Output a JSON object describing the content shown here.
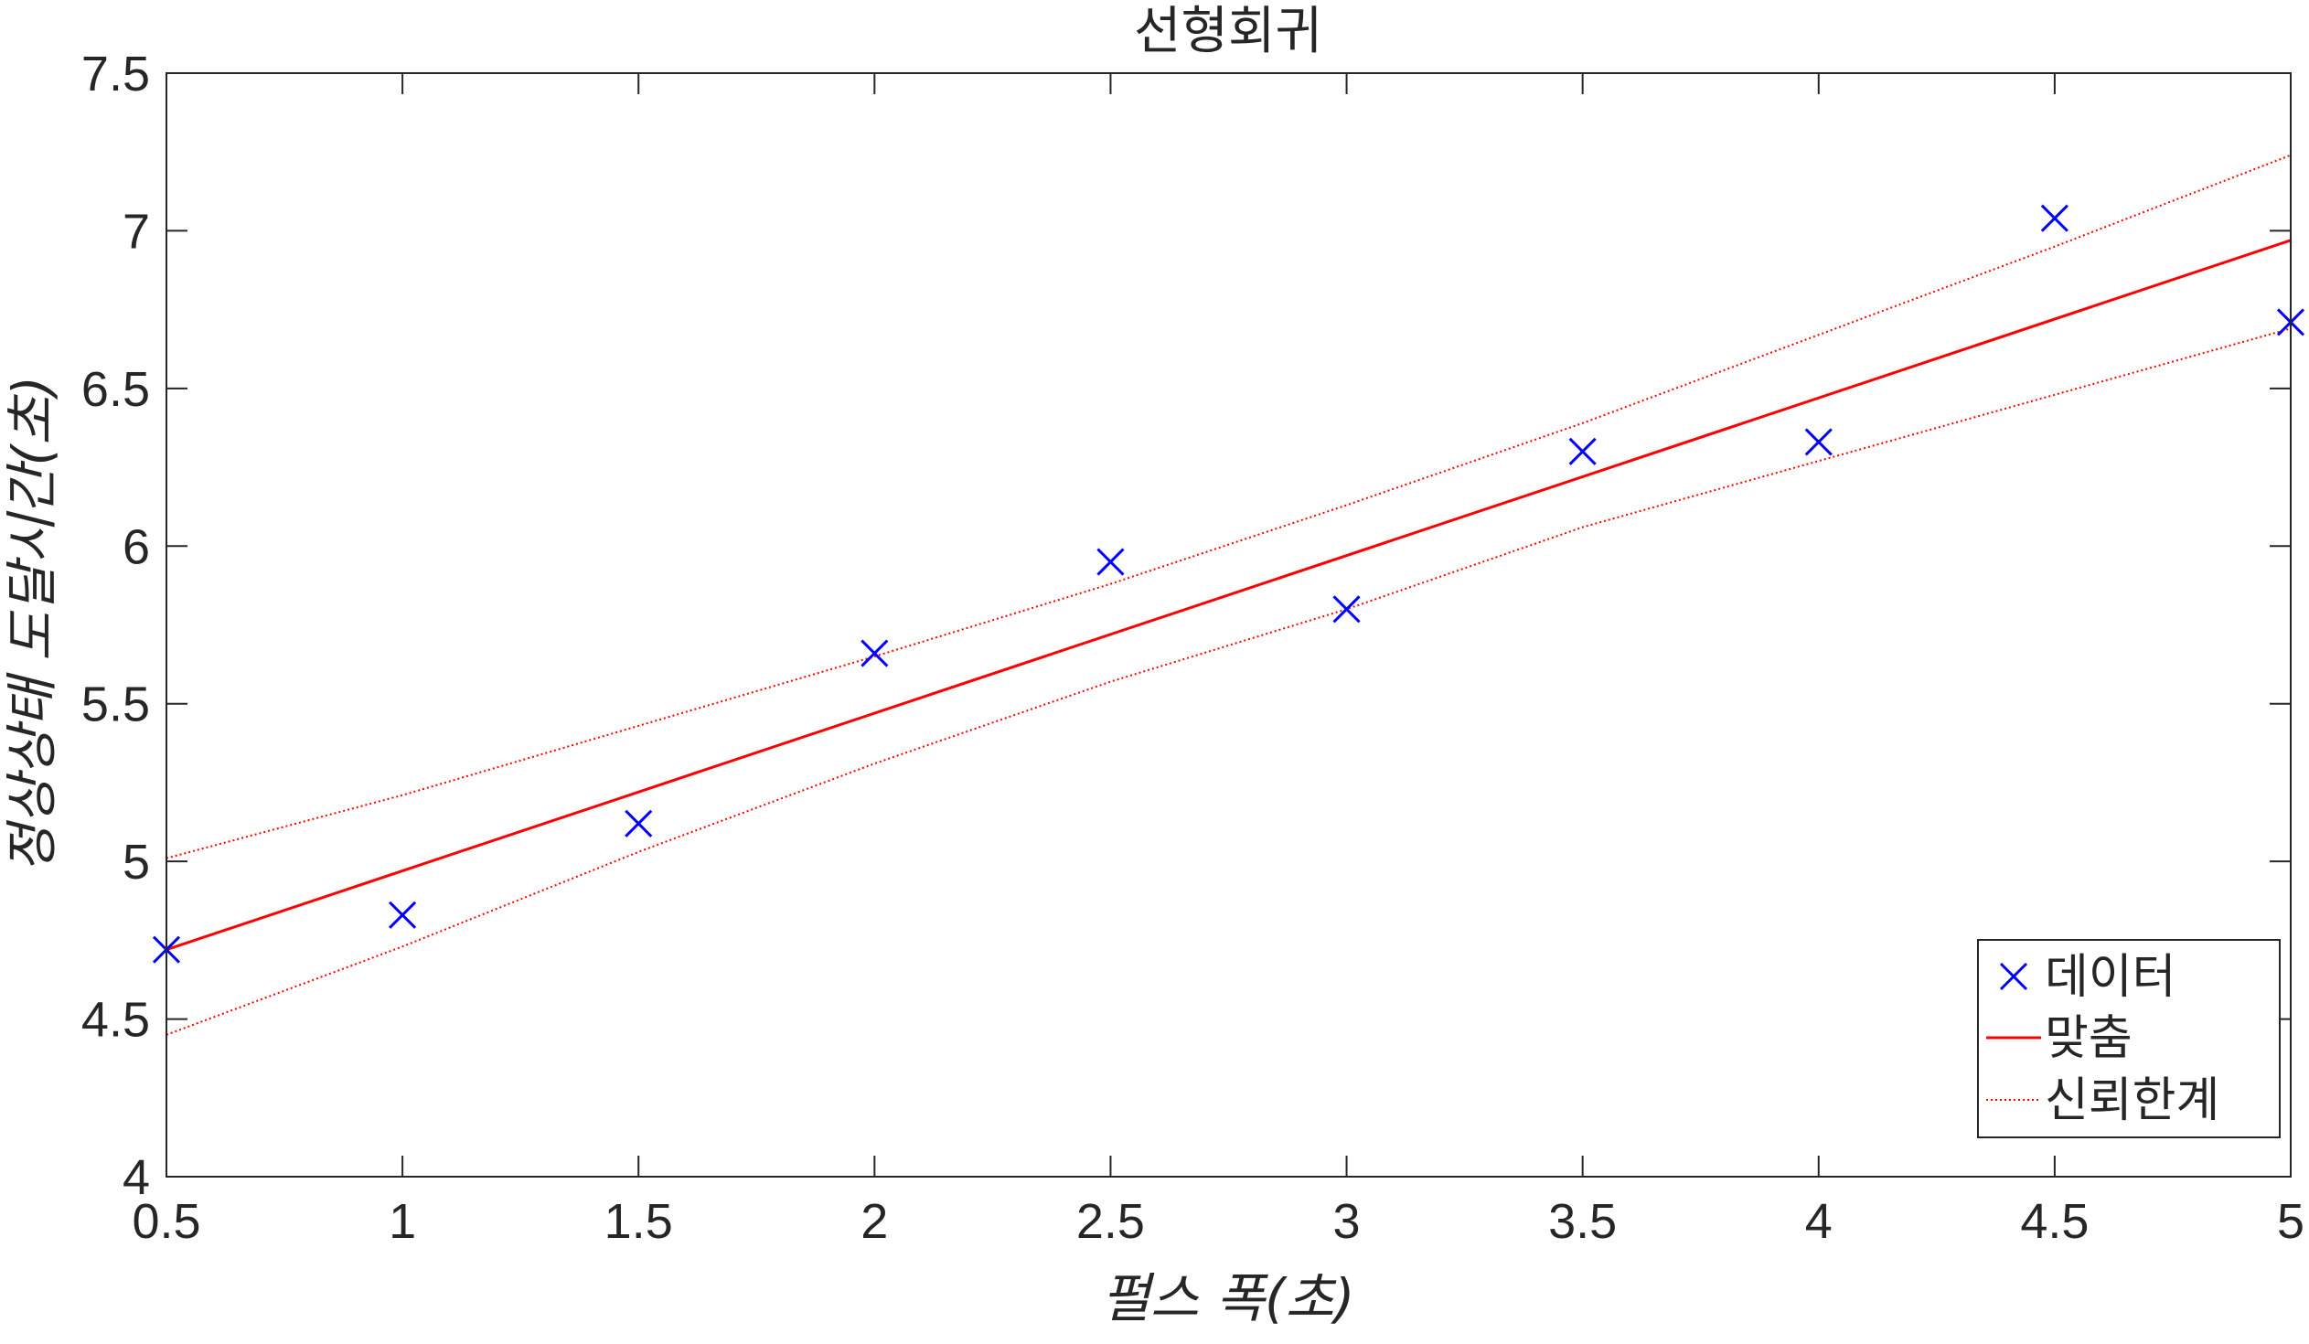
{
  "chart_data": {
    "type": "scatter",
    "title": "선형회귀",
    "xlabel": "펄스 폭(초)",
    "ylabel": "정상상태 도달시간(초)",
    "xlim": [
      0.5,
      5
    ],
    "ylim": [
      4,
      7.5
    ],
    "xticks": [
      "0.5",
      "1",
      "1.5",
      "2",
      "2.5",
      "3",
      "3.5",
      "4",
      "4.5",
      "5"
    ],
    "yticks": [
      "4",
      "4.5",
      "5",
      "5.5",
      "6",
      "6.5",
      "7",
      "7.5"
    ],
    "grid": false,
    "legend_position": "bottom-right",
    "series": [
      {
        "name": "데이터",
        "kind": "scatter",
        "marker": "x",
        "color": "#0000ff",
        "x": [
          0.5,
          1,
          1.5,
          2,
          2.5,
          3,
          3.5,
          4,
          4.5,
          5
        ],
        "y": [
          4.72,
          4.83,
          5.12,
          5.66,
          5.95,
          5.8,
          6.3,
          6.33,
          7.04,
          6.71
        ]
      },
      {
        "name": "맞춤",
        "kind": "line",
        "style": "solid",
        "color": "#ff0000",
        "x": [
          0.5,
          5
        ],
        "y": [
          4.72,
          6.97
        ]
      },
      {
        "name": "신뢰한계",
        "kind": "line",
        "style": "dotted",
        "color": "#ff0000",
        "x": [
          0.5,
          1,
          1.5,
          2,
          2.5,
          3,
          3.5,
          4,
          4.5,
          5
        ],
        "upper": [
          5.01,
          5.21,
          5.43,
          5.65,
          5.88,
          6.13,
          6.39,
          6.67,
          6.95,
          7.24
        ],
        "lower": [
          4.45,
          4.73,
          5.03,
          5.31,
          5.57,
          5.8,
          6.06,
          6.27,
          6.48,
          6.69
        ]
      }
    ]
  }
}
